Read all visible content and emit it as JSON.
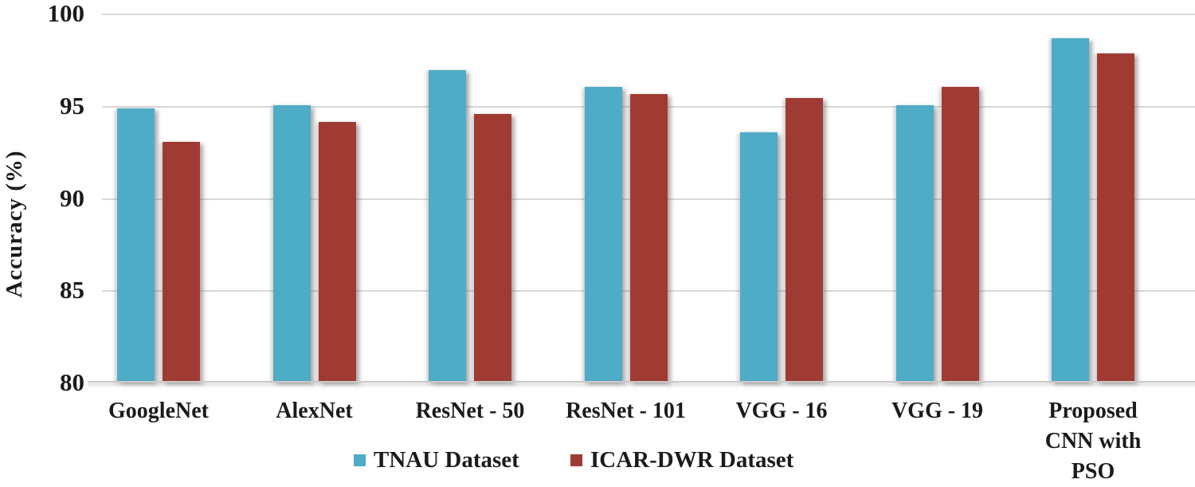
{
  "chart_data": {
    "type": "bar",
    "title": "",
    "xlabel": "",
    "ylabel": "Accuracy  (%)",
    "ylim": [
      80,
      100
    ],
    "yticks": [
      100,
      95,
      90,
      85,
      80
    ],
    "grid": true,
    "legend_position": "bottom-center",
    "categories": [
      "GoogleNet",
      "AlexNet",
      "ResNet - 50",
      "ResNet - 101",
      "VGG - 16",
      "VGG - 19",
      "Proposed CNN with PSO"
    ],
    "series": [
      {
        "name": "TNAU Dataset",
        "color": "#4FACC6",
        "values": [
          94.8,
          95.0,
          96.9,
          96.0,
          93.5,
          95.0,
          98.6
        ]
      },
      {
        "name": "ICAR-DWR Dataset",
        "color": "#A03B34",
        "values": [
          93.0,
          94.1,
          94.5,
          95.6,
          95.4,
          96.0,
          97.8
        ]
      }
    ],
    "colors": {
      "gridline": "#D9D9D9",
      "axis_line": "#CBC9C7",
      "text": "#1B1B1B",
      "background": "#FFFFFF"
    }
  }
}
